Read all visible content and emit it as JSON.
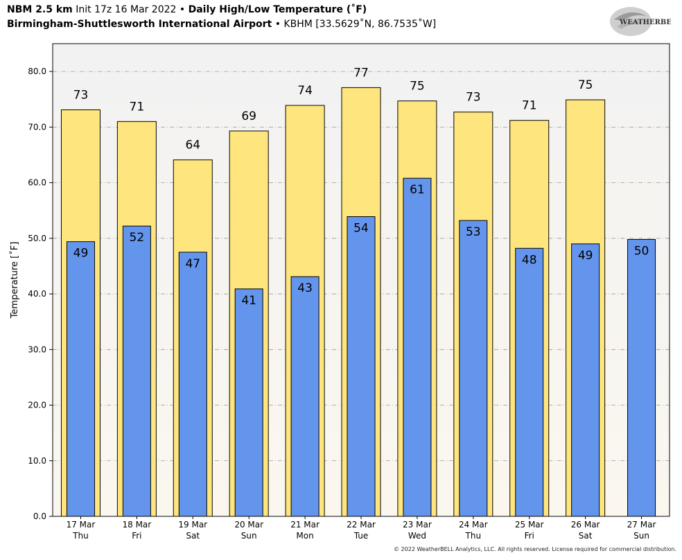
{
  "header": {
    "model": "NBM 2.5 km",
    "init": "Init 17z 16 Mar 2022",
    "bullet": "•",
    "product": "Daily High/Low Temperature (˚F)",
    "station": "Birmingham-Shuttlesworth International Airport",
    "station_info": "KBHM [33.5629˚N, 86.7535˚W]"
  },
  "logo": {
    "text": "WEATHERBELL"
  },
  "footer": {
    "copyright": "© 2022 WeatherBELL Analytics, LLC. All rights reserved. License required for commercial distribution."
  },
  "colors": {
    "high": "#fee57d",
    "low": "#6495ed",
    "plot_bg_top": "#f2f2f2",
    "plot_bg_bottom": "#fbf7ef"
  },
  "chart_data": {
    "type": "bar",
    "ylabel": "Temperature [˚F]",
    "ylim": [
      0,
      85
    ],
    "yticks": [
      "0.0",
      "10.0",
      "20.0",
      "30.0",
      "40.0",
      "50.0",
      "60.0",
      "70.0",
      "80.0"
    ],
    "grid": true,
    "categories": [
      {
        "date": "17 Mar",
        "day": "Thu"
      },
      {
        "date": "18 Mar",
        "day": "Fri"
      },
      {
        "date": "19 Mar",
        "day": "Sat"
      },
      {
        "date": "20 Mar",
        "day": "Sun"
      },
      {
        "date": "21 Mar",
        "day": "Mon"
      },
      {
        "date": "22 Mar",
        "day": "Tue"
      },
      {
        "date": "23 Mar",
        "day": "Wed"
      },
      {
        "date": "24 Mar",
        "day": "Thu"
      },
      {
        "date": "25 Mar",
        "day": "Fri"
      },
      {
        "date": "26 Mar",
        "day": "Sat"
      },
      {
        "date": "27 Mar",
        "day": "Sun"
      }
    ],
    "series": [
      {
        "name": "High",
        "values": [
          73.1,
          71.0,
          64.1,
          69.3,
          73.9,
          77.1,
          74.7,
          72.7,
          71.2,
          74.9,
          null
        ],
        "labels": [
          "73",
          "71",
          "64",
          "69",
          "74",
          "77",
          "75",
          "73",
          "71",
          "75",
          null
        ]
      },
      {
        "name": "Low",
        "values": [
          49.4,
          52.2,
          47.5,
          40.9,
          43.1,
          53.9,
          60.8,
          53.2,
          48.2,
          49.0,
          49.8
        ],
        "labels": [
          "49",
          "52",
          "47",
          "41",
          "43",
          "54",
          "61",
          "53",
          "48",
          "49",
          "50"
        ]
      }
    ]
  }
}
